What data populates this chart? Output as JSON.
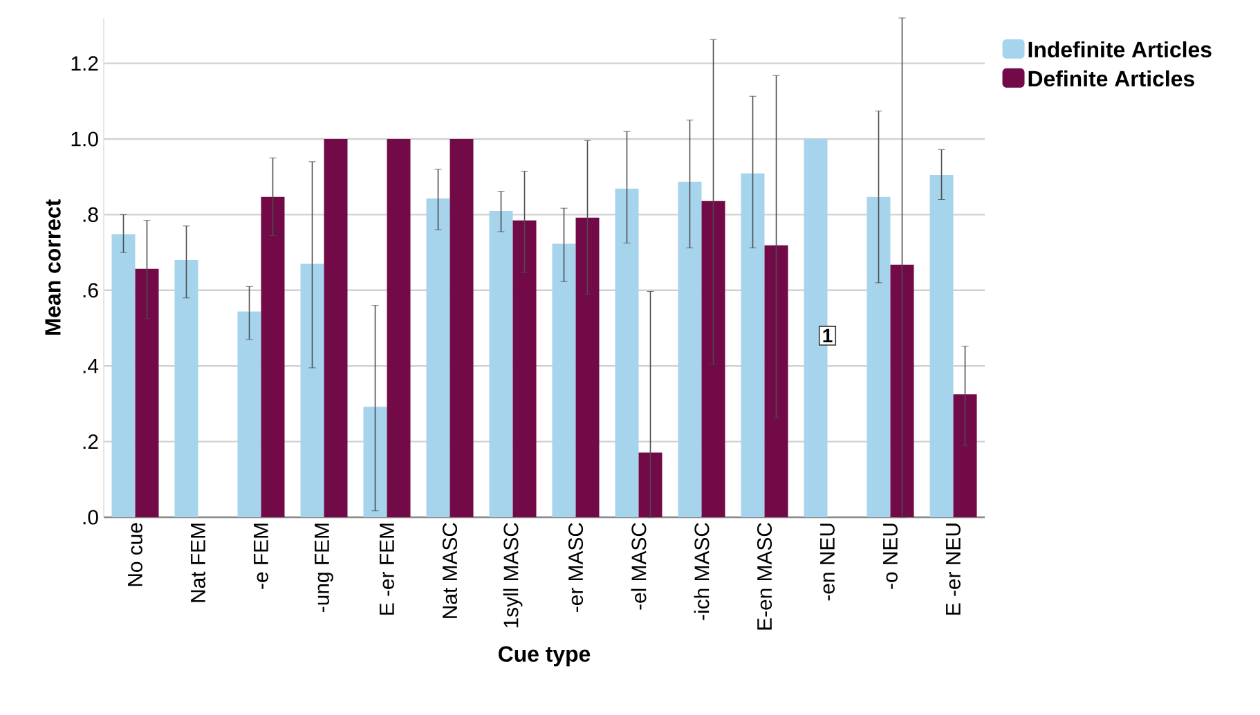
{
  "chart_data": {
    "type": "bar",
    "xlabel": "Cue type",
    "ylabel": "Mean correct",
    "categories": [
      "No cue",
      "Nat FEM",
      "-e FEM",
      "-ung FEM",
      "E -er FEM",
      "Nat MASC",
      "1syll MASC",
      "-er MASC",
      "-el MASC",
      "-ich MASC",
      "E-en MASC",
      "-en NEU",
      "-o NEU",
      "E -er NEU"
    ],
    "series": [
      {
        "name": "Indefinite Articles",
        "color": "#a6d4ec",
        "values": [
          0.748,
          0.68,
          0.544,
          0.67,
          0.292,
          0.843,
          0.81,
          0.723,
          0.869,
          0.887,
          0.909,
          1.0,
          0.847,
          0.905
        ],
        "errors": [
          [
            0.7,
            0.8
          ],
          [
            0.58,
            0.77
          ],
          [
            0.47,
            0.61
          ],
          [
            0.395,
            0.94
          ],
          [
            0.017,
            0.56
          ],
          [
            0.76,
            0.92
          ],
          [
            0.755,
            0.862
          ],
          [
            0.623,
            0.817
          ],
          [
            0.725,
            1.02
          ],
          [
            0.712,
            1.05
          ],
          [
            0.712,
            1.113
          ],
          null,
          [
            0.62,
            1.074
          ],
          [
            0.84,
            0.972
          ]
        ]
      },
      {
        "name": "Definite Articles",
        "color": "#720a48",
        "values": [
          0.657,
          null,
          0.847,
          1.0,
          1.0,
          1.0,
          0.785,
          0.792,
          0.171,
          0.836,
          0.719,
          null,
          0.668,
          0.325
        ],
        "errors": [
          [
            0.525,
            0.785
          ],
          null,
          [
            0.745,
            0.95
          ],
          null,
          null,
          null,
          [
            0.647,
            0.915
          ],
          [
            0.59,
            0.996
          ],
          [
            0,
            0.597
          ],
          [
            0.405,
            1.263
          ],
          [
            0.263,
            1.168
          ],
          null,
          [
            0,
            1.32
          ],
          [
            0.19,
            0.452
          ]
        ]
      }
    ],
    "ylim": [
      0,
      1.32
    ],
    "yticks": [
      {
        "value": 0,
        "label": ".0"
      },
      {
        "value": 0.2,
        "label": ".2"
      },
      {
        "value": 0.4,
        "label": ".4"
      },
      {
        "value": 0.6,
        "label": ".6"
      },
      {
        "value": 0.8,
        "label": ".8"
      },
      {
        "value": 1.0,
        "label": "1.0"
      },
      {
        "value": 1.2,
        "label": "1.2"
      }
    ],
    "grid": "y",
    "legend": "top right",
    "annotations": [
      {
        "text": "1",
        "x": "-en NEU",
        "y": 0.48
      }
    ]
  }
}
